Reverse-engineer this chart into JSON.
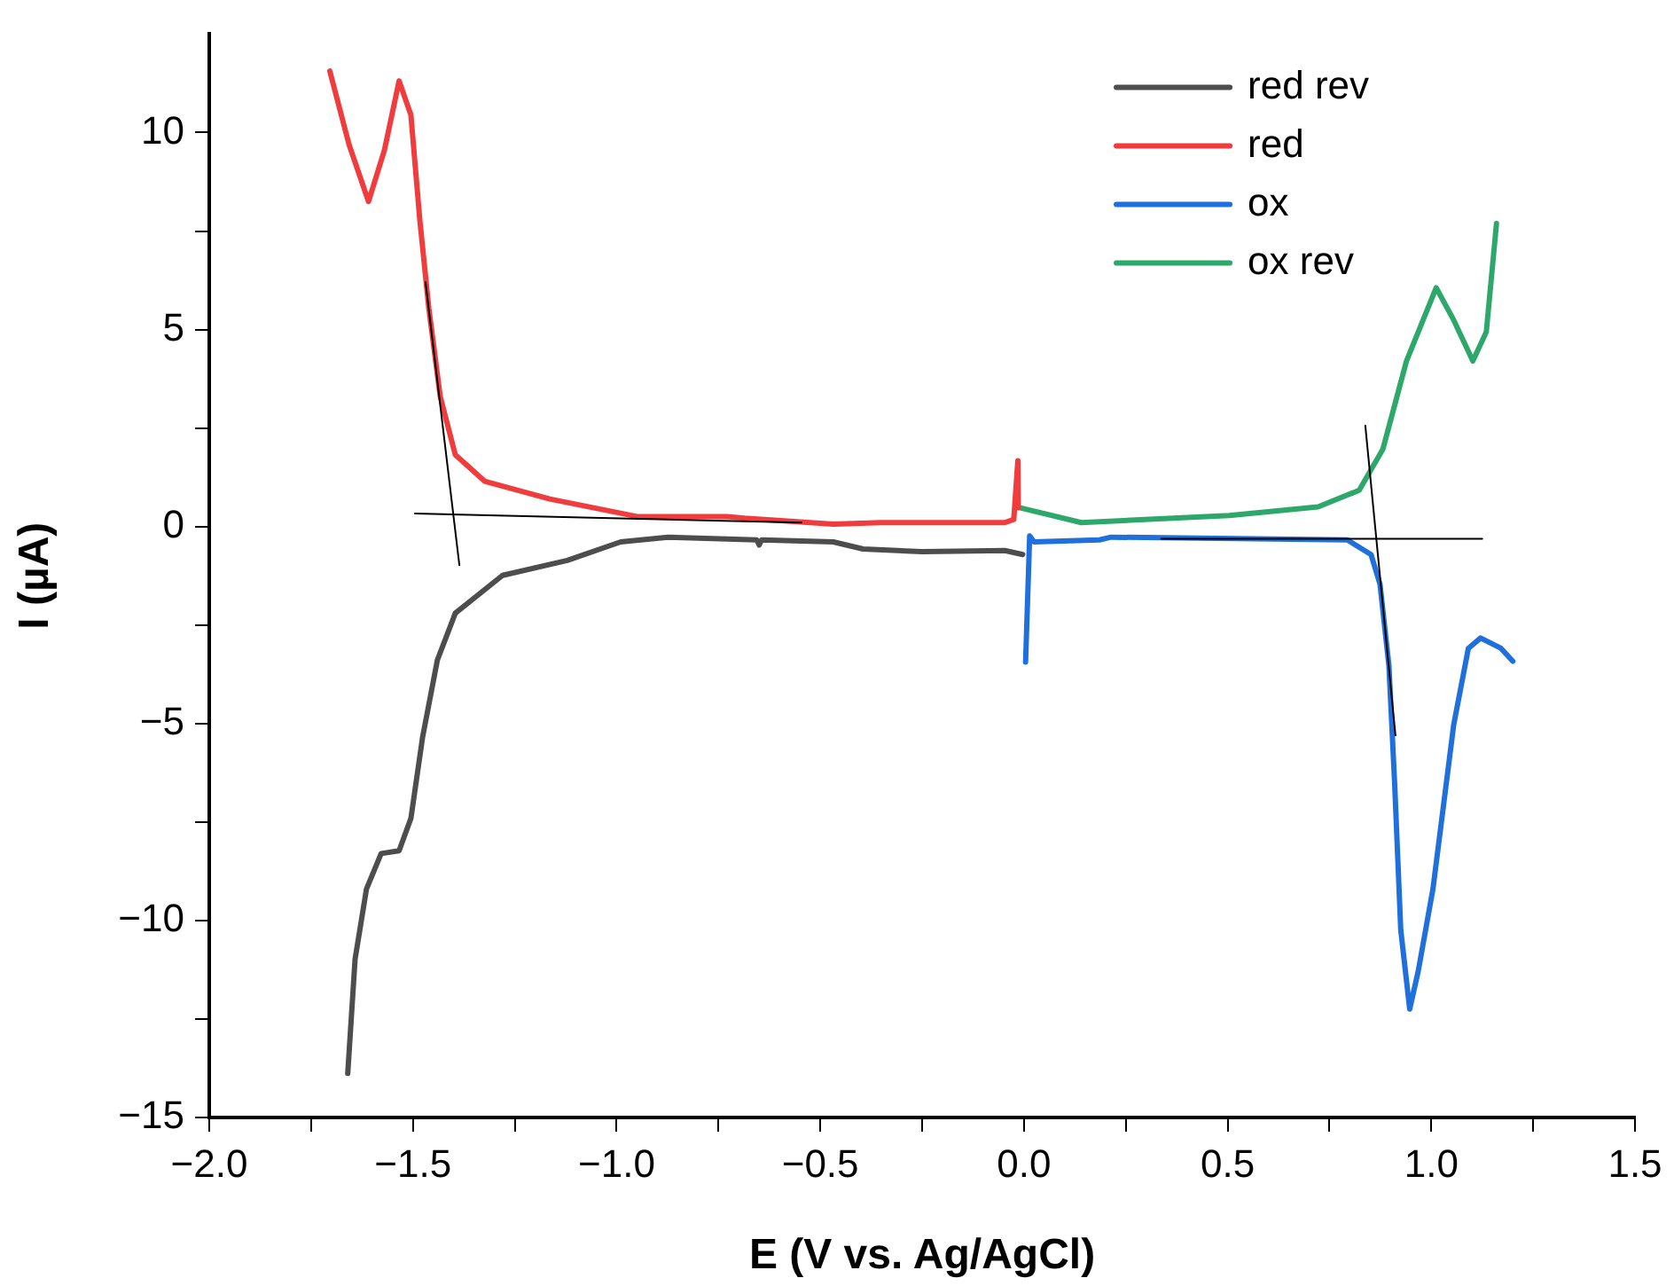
{
  "chart_data": {
    "type": "line",
    "xlabel": "E (V vs. Ag/AgCl)",
    "ylabel": "I (µA)",
    "xlim": [
      -2.0,
      1.5
    ],
    "ylim": [
      -15,
      12.5
    ],
    "xticks": [
      {
        "value": -2.0,
        "label": "−2.0"
      },
      {
        "value": -1.75,
        "label": null
      },
      {
        "value": -1.5,
        "label": "−1.5"
      },
      {
        "value": -1.25,
        "label": null
      },
      {
        "value": -1.0,
        "label": "−1.0"
      },
      {
        "value": -0.75,
        "label": null
      },
      {
        "value": -0.5,
        "label": "−0.5"
      },
      {
        "value": -0.25,
        "label": null
      },
      {
        "value": 0,
        "label": "0.0"
      },
      {
        "value": 0.25,
        "label": null
      },
      {
        "value": 0.5,
        "label": "0.5"
      },
      {
        "value": 0.75,
        "label": null
      },
      {
        "value": 1.0,
        "label": "1.0"
      },
      {
        "value": 1.25,
        "label": null
      },
      {
        "value": 1.5,
        "label": "1.5"
      }
    ],
    "yticks": [
      {
        "value": -15,
        "label": "−15"
      },
      {
        "value": -12.5,
        "label": null
      },
      {
        "value": -10,
        "label": "−10"
      },
      {
        "value": -7.5,
        "label": null
      },
      {
        "value": -5,
        "label": "−5"
      },
      {
        "value": -2.5,
        "label": null
      },
      0,
      {
        "value": 2.5,
        "label": null
      },
      5,
      {
        "value": 7.5,
        "label": null
      },
      10
    ],
    "grid": false,
    "legend": "top right",
    "marker": "none",
    "line_style": "solid",
    "series": [
      {
        "name": "red rev",
        "color": "#4d4d4d",
        "x": [
          -1.66,
          -1.642,
          -1.614,
          -1.578,
          -1.534,
          -1.505,
          -1.476,
          -1.44,
          -1.396,
          -1.28,
          -1.121,
          -0.99,
          -0.874,
          -0.656,
          -0.65,
          -0.644,
          -0.468,
          -0.395,
          -0.25,
          -0.047,
          -0.003
        ],
        "values": [
          -13.88,
          -10.98,
          -9.2,
          -8.3,
          -8.23,
          -7.41,
          -5.33,
          -3.39,
          -2.2,
          -1.24,
          -0.86,
          -0.39,
          -0.27,
          -0.34,
          -0.47,
          -0.34,
          -0.39,
          -0.57,
          -0.64,
          -0.61,
          -0.71
        ]
      },
      {
        "name": "red",
        "color": "#f03c3c",
        "x": [
          -1.704,
          -1.657,
          -1.609,
          -1.57,
          -1.534,
          -1.505,
          -1.483,
          -1.461,
          -1.433,
          -1.396,
          -1.324,
          -1.164,
          -0.947,
          -0.729,
          -0.686,
          -0.468,
          -0.352,
          -0.047,
          -0.025,
          -0.015,
          -0.014
        ],
        "values": [
          11.56,
          9.7,
          8.25,
          9.55,
          11.31,
          10.45,
          7.77,
          5.54,
          3.3,
          1.82,
          1.15,
          0.7,
          0.25,
          0.25,
          0.21,
          0.06,
          0.1,
          0.1,
          0.18,
          1.67,
          0.48
        ]
      },
      {
        "name": "ox",
        "color": "#1f6fdc",
        "x": [
          0.004,
          0.014,
          0.025,
          0.185,
          0.214,
          0.794,
          0.852,
          0.874,
          0.896,
          0.91,
          0.925,
          0.947,
          0.968,
          1.004,
          1.055,
          1.091,
          1.121,
          1.171,
          1.2
        ],
        "values": [
          -3.44,
          -0.24,
          -0.39,
          -0.34,
          -0.27,
          -0.34,
          -0.71,
          -1.46,
          -3.54,
          -6.52,
          -10.24,
          -12.25,
          -11.28,
          -9.2,
          -5.03,
          -3.09,
          -2.83,
          -3.09,
          -3.42
        ]
      },
      {
        "name": "ox rev",
        "color": "#2ea86a",
        "x": [
          -0.011,
          0.141,
          0.504,
          0.722,
          0.823,
          0.881,
          0.939,
          1.012,
          1.055,
          1.102,
          1.135,
          1.16
        ],
        "values": [
          0.48,
          0.1,
          0.28,
          0.5,
          0.92,
          1.96,
          4.2,
          6.06,
          5.24,
          4.2,
          4.94,
          7.69
        ]
      },
      {
        "color": "#000000",
        "x": [
          -1.469,
          -1.386
        ],
        "values": [
          6.2,
          -0.98
        ]
      },
      {
        "color": "#000000",
        "x": [
          -1.495,
          -0.546
        ],
        "values": [
          0.33,
          0.1
        ]
      },
      {
        "color": "#000000",
        "x": [
          0.838,
          0.912
        ],
        "values": [
          2.56,
          -5.3
        ]
      },
      {
        "color": "#000000",
        "x": [
          0.337,
          1.125
        ],
        "values": [
          -0.31,
          -0.31
        ]
      }
    ]
  }
}
